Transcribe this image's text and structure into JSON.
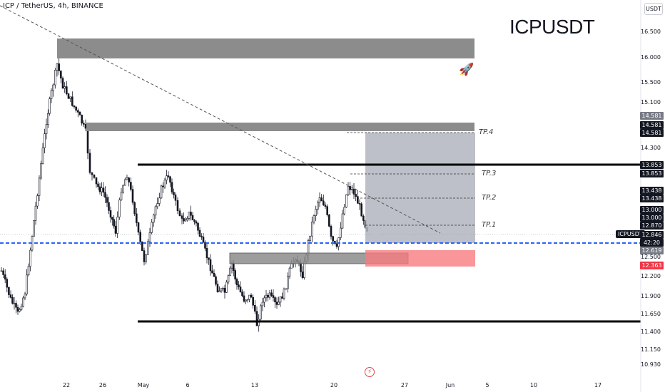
{
  "header": {
    "symbol_line": "ICP / TetherUS, 4h, BINANCE",
    "big_title": "ICPUSDT",
    "currency_badge": "USDT",
    "rocket_icon": "rocket-icon",
    "bolt_icon": "lightning-icon"
  },
  "chart_data": {
    "type": "candlestick",
    "title": "ICPUSDT",
    "y_axis_ticks": [
      "16.500",
      "16.000",
      "15.500",
      "15.100",
      "14.300",
      "12.500",
      "12.200",
      "11.900",
      "11.650",
      "11.400",
      "11.150",
      "10.930"
    ],
    "x_axis_ticks": [
      "22",
      "26",
      "May",
      "6",
      "13",
      "20",
      "27",
      "Jun",
      "5",
      "10",
      "17"
    ],
    "last_price": 12.846,
    "price_labels": [
      {
        "text": "14.581",
        "color": "#787b86"
      },
      {
        "text": "14.581",
        "color": "#131722"
      },
      {
        "text": "14.581",
        "color": "#131722"
      },
      {
        "text": "13.853",
        "color": "#131722"
      },
      {
        "text": "13.853",
        "color": "#131722"
      },
      {
        "text": "13.438",
        "color": "#131722"
      },
      {
        "text": "13.438",
        "color": "#131722"
      },
      {
        "text": "13.000",
        "color": "#131722"
      },
      {
        "text": "13.000",
        "color": "#131722"
      },
      {
        "text": "12.870",
        "color": "#131722"
      },
      {
        "text": "12.846",
        "color": "#131722"
      },
      {
        "text": "42:20",
        "color": "#131722"
      },
      {
        "text": "12.619",
        "color": "#787b86"
      },
      {
        "text": "12.363",
        "color": "#f23645"
      }
    ],
    "ticker_tag": "ICPUSDT",
    "targets": [
      {
        "label": "TP.4",
        "price": 14.581
      },
      {
        "label": "TP.3",
        "price": 13.853
      },
      {
        "label": "TP.2",
        "price": 13.438
      },
      {
        "label": "TP.1",
        "price": 12.87
      }
    ],
    "entry_price": 12.619,
    "stop_price": 12.363,
    "supply_zones": [
      {
        "from": 15.98,
        "to": 16.3
      },
      {
        "from": 14.58,
        "to": 14.7
      }
    ],
    "demand_zone": {
      "from": 12.4,
      "to": 12.58
    },
    "horizontal_levels": [
      13.85,
      11.55
    ],
    "colors": {
      "bull": "#131722",
      "bear": "#131722",
      "zone": "#7f7f7f",
      "target_box": "#b2b5be",
      "stop_box": "#f77c80",
      "entry_line": "#2962ff"
    }
  }
}
